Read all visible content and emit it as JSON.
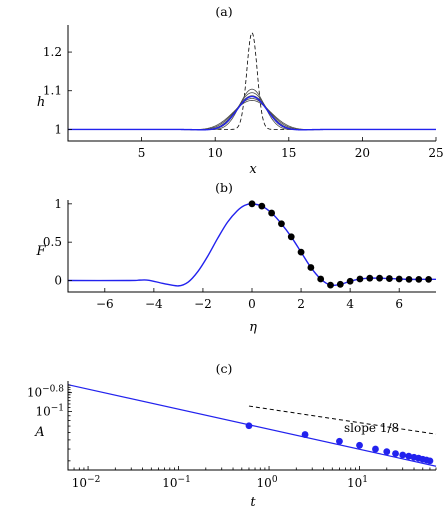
{
  "chart_data": [
    {
      "panel": "(a)",
      "type": "line",
      "xlabel": "x",
      "ylabel": "h",
      "xlim": [
        0,
        25
      ],
      "ylim": [
        0.97,
        1.27
      ],
      "xticks": [
        5,
        10,
        15,
        20,
        25
      ],
      "xtick_labels": [
        "5",
        "10",
        "15",
        "20",
        "25"
      ],
      "yticks": [
        1,
        1.1,
        1.2
      ],
      "ytick_labels": [
        "1",
        "1.1",
        "1.2"
      ],
      "series": [
        {
          "style": "dashed",
          "color": "#000000",
          "profile": {
            "peak": 1.25,
            "center": 12.5,
            "width": 0.5,
            "dip": 0
          }
        },
        {
          "style": "solid",
          "color": "#4a4a4a",
          "profile": {
            "peak": 1.104,
            "center": 12.5,
            "width": 1.2,
            "dip": 0.004
          }
        },
        {
          "style": "solid",
          "color": "#4a4a4a",
          "profile": {
            "peak": 1.095,
            "center": 12.5,
            "width": 1.35,
            "dip": 0.004
          }
        },
        {
          "style": "solid",
          "color": "#4a4a4a",
          "profile": {
            "peak": 1.087,
            "center": 12.5,
            "width": 1.5,
            "dip": 0.004
          }
        },
        {
          "style": "solid",
          "color": "#4a4a4a",
          "profile": {
            "peak": 1.08,
            "center": 12.5,
            "width": 1.65,
            "dip": 0.004
          }
        },
        {
          "style": "solid",
          "color": "#4a4a4a",
          "profile": {
            "peak": 1.075,
            "center": 12.5,
            "width": 1.8,
            "dip": 0.004
          }
        },
        {
          "style": "solid",
          "color": "#2222ee",
          "profile": {
            "peak": 1.085,
            "center": 12.5,
            "width": 1.45,
            "dip": 0.005
          }
        }
      ]
    },
    {
      "panel": "(b)",
      "type": "line+scatter",
      "xlabel": "η",
      "ylabel": "F",
      "xlim": [
        -7.5,
        7.5
      ],
      "ylim": [
        -0.15,
        1.05
      ],
      "xticks": [
        -6,
        -4,
        -2,
        0,
        2,
        4,
        6
      ],
      "xtick_labels": [
        "−6",
        "−4",
        "−2",
        "0",
        "2",
        "4",
        "6"
      ],
      "yticks": [
        0,
        0.5,
        1
      ],
      "ytick_labels": [
        "0",
        "0.5",
        "1"
      ],
      "line_color": "#2222ee",
      "points": {
        "color": "#000000",
        "x": [
          0,
          0.4,
          0.8,
          1.2,
          1.6,
          2.0,
          2.4,
          2.8,
          3.2,
          3.6,
          4.0,
          4.4,
          4.8,
          5.2,
          5.6,
          6.0,
          6.4,
          6.8,
          7.2
        ],
        "y": [
          1.0,
          0.97,
          0.88,
          0.74,
          0.57,
          0.37,
          0.17,
          0.02,
          -0.06,
          -0.05,
          -0.01,
          0.02,
          0.03,
          0.03,
          0.025,
          0.02,
          0.015,
          0.015,
          0.015
        ]
      }
    },
    {
      "panel": "(c)",
      "type": "line+scatter",
      "xlabel": "t",
      "ylabel": "A",
      "xscale": "log",
      "yscale": "log",
      "xlim": [
        0.006,
        70
      ],
      "ylim": [
        0.024,
        0.21
      ],
      "xticks": [
        0.01,
        0.1,
        1,
        10
      ],
      "yticks": [
        0.1,
        0.158
      ],
      "line_color": "#2222ee",
      "line": {
        "x": [
          0.006,
          70
        ],
        "y": [
          0.192,
          0.0263
        ]
      },
      "points": {
        "color": "#2222ee",
        "x": [
          0.6,
          2.5,
          6,
          10,
          15,
          20,
          25,
          30,
          35,
          40,
          45,
          50,
          55,
          60
        ],
        "y": [
          0.0706,
          0.0569,
          0.0484,
          0.0438,
          0.04,
          0.0375,
          0.0358,
          0.0346,
          0.0336,
          0.0327,
          0.032,
          0.0312,
          0.0306,
          0.03
        ]
      },
      "reference": {
        "style": "dashed",
        "color": "#000000",
        "x": [
          0.6,
          70
        ],
        "y": [
          0.114,
          0.0575
        ]
      },
      "annotation": "slope 1/8"
    }
  ],
  "labels": {
    "a": {
      "title": "(a)",
      "xlabel": "x",
      "ylabel": "h",
      "yticks": [
        "1",
        "1.1",
        "1.2"
      ],
      "xticks": [
        "5",
        "10",
        "15",
        "20",
        "25"
      ]
    },
    "b": {
      "title": "(b)",
      "xlabel": "η",
      "ylabel": "F",
      "yticks": [
        "0",
        "0.5",
        "1"
      ],
      "xticks": [
        "−6",
        "−4",
        "−2",
        "0",
        "2",
        "4",
        "6"
      ]
    },
    "c": {
      "title": "(c)",
      "xlabel": "t",
      "ylabel": "A",
      "ytick_base": "10",
      "ytick_exp1": "−0.8",
      "ytick_exp2": "−1",
      "xtick_exp": [
        "−2",
        "−1",
        "0",
        "1"
      ],
      "annotation": "slope 1/8"
    }
  }
}
